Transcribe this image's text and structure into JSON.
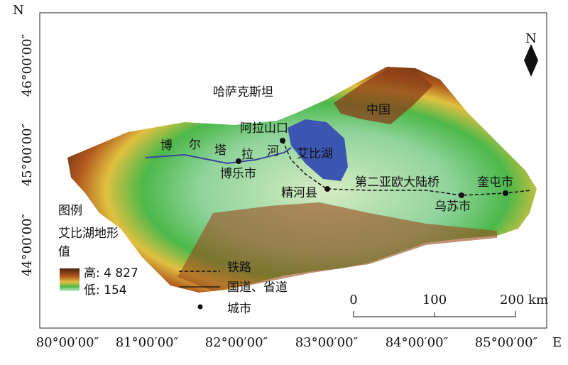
{
  "frame": {
    "north": "N",
    "east": "E",
    "lat_labels": [
      "46°00′00″",
      "45°00′00″",
      "44°00′00″"
    ],
    "lon_labels": [
      "80°00′00″",
      "81°00′00″",
      "82°00′00″",
      "83°00′00″",
      "84°00′00″",
      "85°00′00″"
    ]
  },
  "north_arrow": "N",
  "places": {
    "kazakhstan": "哈萨克斯坦",
    "china": "中国",
    "alashankou": "阿拉山口",
    "lake": "艾比湖",
    "bole": "博乐市",
    "jinghe": "精河县",
    "wusu": "乌苏市",
    "kuitun": "奎屯市",
    "railway": "第二亚欧大陆桥",
    "river": [
      "博",
      "尔",
      "塔",
      "拉",
      "河"
    ]
  },
  "legend": {
    "title": "图例",
    "subtitle_lines": [
      "艾比湖地形",
      "值"
    ],
    "high": "高: 4 827",
    "low": "低: 154",
    "railway": "铁路",
    "road": "国道、省道",
    "city": "城市"
  },
  "scale": {
    "labels": [
      "0",
      "100",
      "200 km"
    ]
  }
}
